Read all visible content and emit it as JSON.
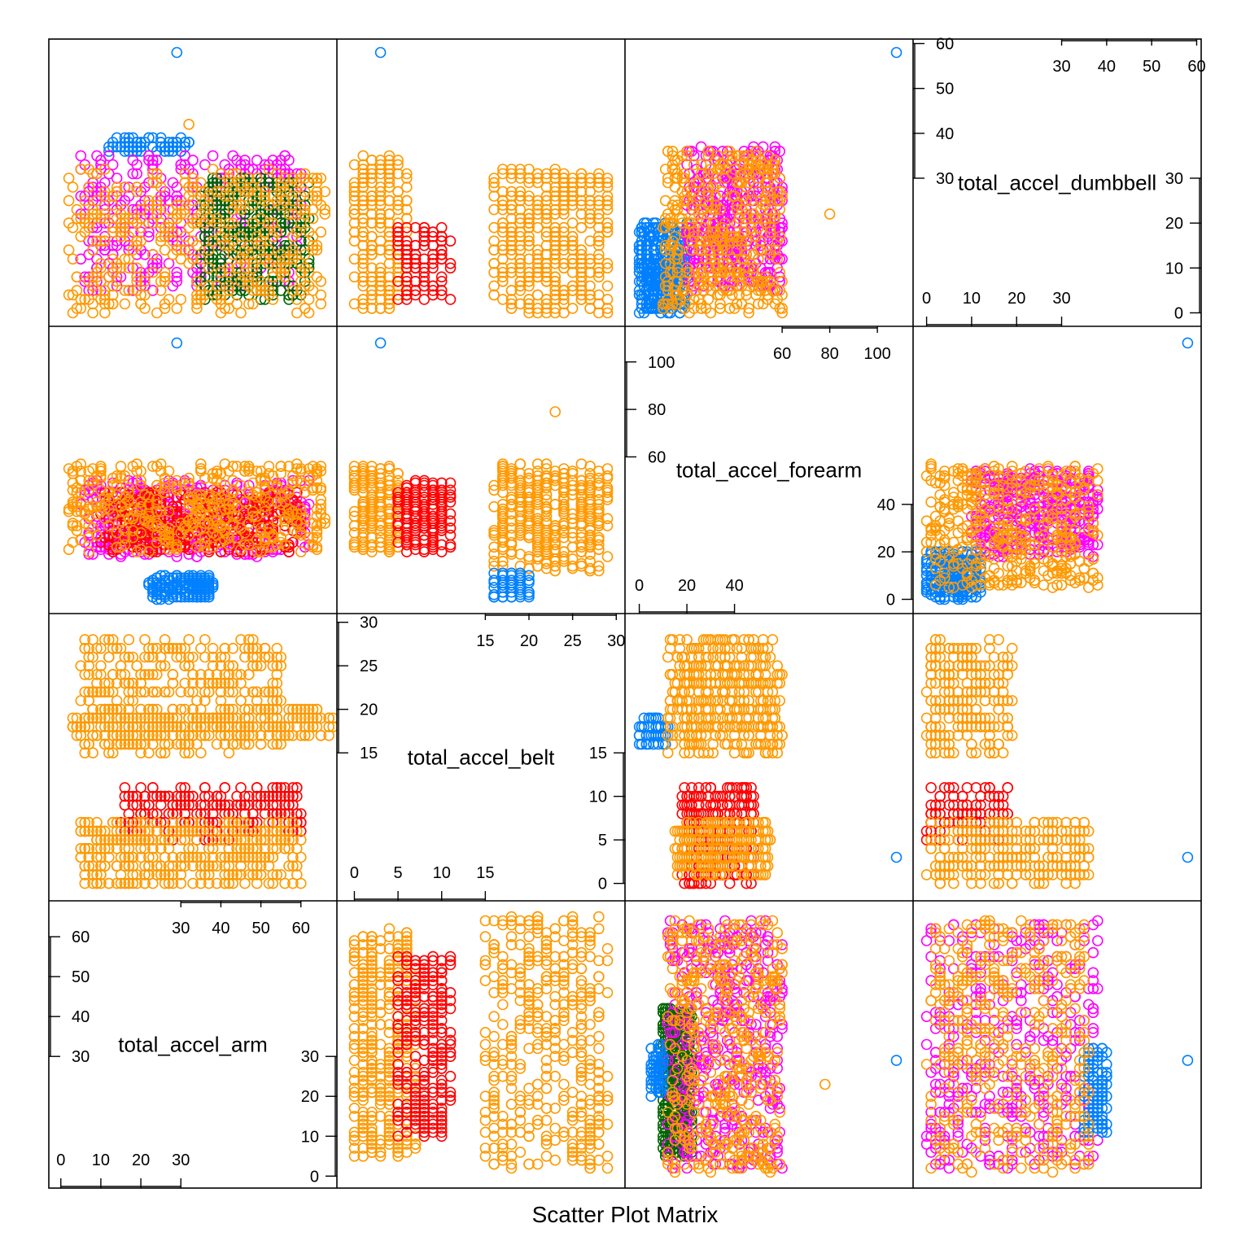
{
  "chart_data": {
    "type": "scatter",
    "subtype": "scatter-plot-matrix",
    "xlabel": "Scatter Plot Matrix",
    "variables": [
      "total_accel_arm",
      "total_accel_belt",
      "total_accel_forearm",
      "total_accel_dumbbell"
    ],
    "group_colors": [
      "#0080ff",
      "#ff00ff",
      "#006400",
      "#ff0000",
      "#ff9900"
    ],
    "marker": "open-circle",
    "ranges": {
      "total_accel_arm": [
        -3,
        69
      ],
      "total_accel_belt": [
        -2,
        31
      ],
      "total_accel_forearm": [
        -6,
        115
      ],
      "total_accel_dumbbell": [
        -3,
        61
      ]
    },
    "diagonal": [
      {
        "variable": "total_accel_arm",
        "label": "total_accel_arm",
        "ticks_top": [
          "30",
          "40",
          "50",
          "60"
        ],
        "ticks_top_values": [
          30,
          40,
          50,
          60
        ],
        "ticks_left": [
          "60",
          "50",
          "40",
          "30"
        ],
        "ticks_left_values": [
          60,
          50,
          40,
          30
        ],
        "ticks_bottom": [
          "0",
          "10",
          "20",
          "30"
        ],
        "ticks_bottom_values": [
          0,
          10,
          20,
          30
        ],
        "ticks_right": [
          "30",
          "20",
          "10",
          "0"
        ],
        "ticks_right_values": [
          30,
          20,
          10,
          0
        ]
      },
      {
        "variable": "total_accel_belt",
        "label": "total_accel_belt",
        "ticks_top": [
          "15",
          "20",
          "25",
          "30"
        ],
        "ticks_top_values": [
          15,
          20,
          25,
          30
        ],
        "ticks_left": [
          "30",
          "25",
          "20",
          "15"
        ],
        "ticks_left_values": [
          30,
          25,
          20,
          15
        ],
        "ticks_bottom": [
          "0",
          "5",
          "10",
          "15"
        ],
        "ticks_bottom_values": [
          0,
          5,
          10,
          15
        ],
        "ticks_right": [
          "15",
          "10",
          "5",
          "0"
        ],
        "ticks_right_values": [
          15,
          10,
          5,
          0
        ]
      },
      {
        "variable": "total_accel_forearm",
        "label": "total_accel_forearm",
        "ticks_top": [
          "60",
          "80",
          "100"
        ],
        "ticks_top_values": [
          60,
          80,
          100
        ],
        "ticks_left": [
          "100",
          "80",
          "60"
        ],
        "ticks_left_values": [
          100,
          80,
          60
        ],
        "ticks_bottom": [
          "0",
          "20",
          "40"
        ],
        "ticks_bottom_values": [
          0,
          20,
          40
        ],
        "ticks_right": [
          "40",
          "20",
          "0"
        ],
        "ticks_right_values": [
          40,
          20,
          0
        ]
      },
      {
        "variable": "total_accel_dumbbell",
        "label": "total_accel_dumbbell",
        "ticks_top": [
          "30",
          "40",
          "50",
          "60"
        ],
        "ticks_top_values": [
          30,
          40,
          50,
          60
        ],
        "ticks_left": [
          "60",
          "50",
          "40",
          "30"
        ],
        "ticks_left_values": [
          60,
          50,
          40,
          30
        ],
        "ticks_bottom": [
          "0",
          "10",
          "20",
          "30"
        ],
        "ticks_bottom_values": [
          0,
          10,
          20,
          30
        ],
        "ticks_right": [
          "30",
          "20",
          "10",
          "0"
        ],
        "ticks_right_values": [
          30,
          20,
          10,
          0
        ]
      }
    ],
    "clusters": [
      {
        "x": "total_accel_arm",
        "y": "total_accel_belt",
        "color": 4,
        "x_range": [
          5,
          55
        ],
        "y_range": [
          15,
          28
        ]
      },
      {
        "x": "total_accel_arm",
        "y": "total_accel_belt",
        "color": 4,
        "x_range": [
          3,
          68
        ],
        "y_range": [
          17,
          20
        ]
      },
      {
        "x": "total_accel_arm",
        "y": "total_accel_belt",
        "color": 3,
        "x_range": [
          15,
          60
        ],
        "y_range": [
          5,
          11
        ]
      },
      {
        "x": "total_accel_arm",
        "y": "total_accel_belt",
        "color": 4,
        "x_range": [
          5,
          60
        ],
        "y_range": [
          0,
          7
        ]
      },
      {
        "x": "total_accel_arm",
        "y": "total_accel_forearm",
        "color": 1,
        "x_range": [
          5,
          62
        ],
        "y_range": [
          18,
          50
        ]
      },
      {
        "x": "total_accel_arm",
        "y": "total_accel_forearm",
        "color": 3,
        "x_range": [
          10,
          60
        ],
        "y_range": [
          20,
          45
        ]
      },
      {
        "x": "total_accel_arm",
        "y": "total_accel_forearm",
        "color": 4,
        "x_range": [
          2,
          66
        ],
        "y_range": [
          20,
          57
        ]
      },
      {
        "x": "total_accel_arm",
        "y": "total_accel_forearm",
        "color": 0,
        "x_range": [
          22,
          38
        ],
        "y_range": [
          0,
          10
        ]
      },
      {
        "x": "total_accel_arm",
        "y": "total_accel_dumbbell",
        "color": 0,
        "x_range": [
          12,
          32
        ],
        "y_range": [
          36,
          39
        ]
      },
      {
        "x": "total_accel_arm",
        "y": "total_accel_dumbbell",
        "color": 1,
        "x_range": [
          5,
          60
        ],
        "y_range": [
          5,
          35
        ]
      },
      {
        "x": "total_accel_arm",
        "y": "total_accel_dumbbell",
        "color": 2,
        "x_range": [
          35,
          62
        ],
        "y_range": [
          3,
          30
        ]
      },
      {
        "x": "total_accel_arm",
        "y": "total_accel_dumbbell",
        "color": 4,
        "x_range": [
          2,
          66
        ],
        "y_range": [
          0,
          32
        ]
      },
      {
        "x": "total_accel_belt",
        "y": "total_accel_arm",
        "color": 4,
        "x_range": [
          0,
          7
        ],
        "y_range": [
          5,
          62
        ]
      },
      {
        "x": "total_accel_belt",
        "y": "total_accel_arm",
        "color": 3,
        "x_range": [
          5,
          11
        ],
        "y_range": [
          10,
          55
        ]
      },
      {
        "x": "total_accel_belt",
        "y": "total_accel_arm",
        "color": 4,
        "x_range": [
          15,
          29
        ],
        "y_range": [
          2,
          65
        ]
      },
      {
        "x": "total_accel_belt",
        "y": "total_accel_forearm",
        "color": 4,
        "x_range": [
          0,
          5
        ],
        "y_range": [
          20,
          57
        ]
      },
      {
        "x": "total_accel_belt",
        "y": "total_accel_forearm",
        "color": 3,
        "x_range": [
          5,
          11
        ],
        "y_range": [
          20,
          50
        ]
      },
      {
        "x": "total_accel_belt",
        "y": "total_accel_forearm",
        "color": 4,
        "x_range": [
          16,
          29
        ],
        "y_range": [
          12,
          57
        ]
      },
      {
        "x": "total_accel_belt",
        "y": "total_accel_forearm",
        "color": 0,
        "x_range": [
          16,
          20
        ],
        "y_range": [
          0,
          12
        ]
      },
      {
        "x": "total_accel_belt",
        "y": "total_accel_dumbbell",
        "color": 4,
        "x_range": [
          0,
          6
        ],
        "y_range": [
          0,
          35
        ]
      },
      {
        "x": "total_accel_belt",
        "y": "total_accel_dumbbell",
        "color": 3,
        "x_range": [
          5,
          11
        ],
        "y_range": [
          3,
          19
        ]
      },
      {
        "x": "total_accel_belt",
        "y": "total_accel_dumbbell",
        "color": 4,
        "x_range": [
          16,
          29
        ],
        "y_range": [
          0,
          32
        ]
      },
      {
        "x": "total_accel_forearm",
        "y": "total_accel_arm",
        "color": 2,
        "x_range": [
          10,
          22
        ],
        "y_range": [
          5,
          42
        ]
      },
      {
        "x": "total_accel_forearm",
        "y": "total_accel_arm",
        "color": 1,
        "x_range": [
          12,
          60
        ],
        "y_range": [
          2,
          64
        ]
      },
      {
        "x": "total_accel_forearm",
        "y": "total_accel_arm",
        "color": 0,
        "x_range": [
          5,
          10
        ],
        "y_range": [
          20,
          33
        ]
      },
      {
        "x": "total_accel_forearm",
        "y": "total_accel_arm",
        "color": 4,
        "x_range": [
          12,
          60
        ],
        "y_range": [
          1,
          64
        ]
      },
      {
        "x": "total_accel_forearm",
        "y": "total_accel_belt",
        "color": 0,
        "x_range": [
          0,
          12
        ],
        "y_range": [
          16,
          19
        ]
      },
      {
        "x": "total_accel_forearm",
        "y": "total_accel_belt",
        "color": 3,
        "x_range": [
          18,
          48
        ],
        "y_range": [
          0,
          11
        ]
      },
      {
        "x": "total_accel_forearm",
        "y": "total_accel_belt",
        "color": 4,
        "x_range": [
          12,
          60
        ],
        "y_range": [
          15,
          28
        ]
      },
      {
        "x": "total_accel_forearm",
        "y": "total_accel_belt",
        "color": 4,
        "x_range": [
          15,
          55
        ],
        "y_range": [
          1,
          7
        ]
      },
      {
        "x": "total_accel_forearm",
        "y": "total_accel_dumbbell",
        "color": 0,
        "x_range": [
          0,
          20
        ],
        "y_range": [
          0,
          20
        ]
      },
      {
        "x": "total_accel_forearm",
        "y": "total_accel_dumbbell",
        "color": 1,
        "x_range": [
          20,
          60
        ],
        "y_range": [
          5,
          37
        ]
      },
      {
        "x": "total_accel_forearm",
        "y": "total_accel_dumbbell",
        "color": 4,
        "x_range": [
          10,
          60
        ],
        "y_range": [
          0,
          36
        ]
      },
      {
        "x": "total_accel_dumbbell",
        "y": "total_accel_arm",
        "color": 1,
        "x_range": [
          0,
          38
        ],
        "y_range": [
          2,
          64
        ]
      },
      {
        "x": "total_accel_dumbbell",
        "y": "total_accel_arm",
        "color": 0,
        "x_range": [
          35,
          40
        ],
        "y_range": [
          10,
          32
        ]
      },
      {
        "x": "total_accel_dumbbell",
        "y": "total_accel_arm",
        "color": 4,
        "x_range": [
          0,
          36
        ],
        "y_range": [
          1,
          64
        ]
      },
      {
        "x": "total_accel_dumbbell",
        "y": "total_accel_belt",
        "color": 4,
        "x_range": [
          0,
          19
        ],
        "y_range": [
          15,
          28
        ]
      },
      {
        "x": "total_accel_dumbbell",
        "y": "total_accel_belt",
        "color": 3,
        "x_range": [
          0,
          18
        ],
        "y_range": [
          5,
          11
        ]
      },
      {
        "x": "total_accel_dumbbell",
        "y": "total_accel_belt",
        "color": 4,
        "x_range": [
          0,
          36
        ],
        "y_range": [
          0,
          7
        ]
      },
      {
        "x": "total_accel_dumbbell",
        "y": "total_accel_forearm",
        "color": 1,
        "x_range": [
          10,
          38
        ],
        "y_range": [
          18,
          55
        ]
      },
      {
        "x": "total_accel_dumbbell",
        "y": "total_accel_forearm",
        "color": 0,
        "x_range": [
          0,
          12
        ],
        "y_range": [
          0,
          20
        ]
      },
      {
        "x": "total_accel_dumbbell",
        "y": "total_accel_forearm",
        "color": 4,
        "x_range": [
          0,
          38
        ],
        "y_range": [
          5,
          57
        ]
      }
    ],
    "outliers": [
      {
        "x": "total_accel_arm",
        "y": "total_accel_dumbbell",
        "x_value": 29,
        "y_value": 58,
        "color": 0
      },
      {
        "x": "total_accel_belt",
        "y": "total_accel_dumbbell",
        "x_value": 3,
        "y_value": 58,
        "color": 0
      },
      {
        "x": "total_accel_forearm",
        "y": "total_accel_dumbbell",
        "x_value": 108,
        "y_value": 58,
        "color": 0
      },
      {
        "x": "total_accel_arm",
        "y": "total_accel_forearm",
        "x_value": 29,
        "y_value": 108,
        "color": 0
      },
      {
        "x": "total_accel_belt",
        "y": "total_accel_forearm",
        "x_value": 3,
        "y_value": 108,
        "color": 0
      },
      {
        "x": "total_accel_dumbbell",
        "y": "total_accel_forearm",
        "x_value": 58,
        "y_value": 108,
        "color": 0
      },
      {
        "x": "total_accel_forearm",
        "y": "total_accel_belt",
        "x_value": 108,
        "y_value": 3,
        "color": 0
      },
      {
        "x": "total_accel_dumbbell",
        "y": "total_accel_belt",
        "x_value": 58,
        "y_value": 3,
        "color": 0
      },
      {
        "x": "total_accel_forearm",
        "y": "total_accel_arm",
        "x_value": 108,
        "y_value": 29,
        "color": 0
      },
      {
        "x": "total_accel_dumbbell",
        "y": "total_accel_arm",
        "x_value": 58,
        "y_value": 29,
        "color": 0
      },
      {
        "x": "total_accel_forearm",
        "y": "total_accel_dumbbell",
        "x_value": 80,
        "y_value": 22,
        "color": 4
      },
      {
        "x": "total_accel_forearm",
        "y": "total_accel_arm",
        "x_value": 78,
        "y_value": 23,
        "color": 4
      },
      {
        "x": "total_accel_arm",
        "y": "total_accel_dumbbell",
        "x_value": 32,
        "y_value": 42,
        "color": 4
      },
      {
        "x": "total_accel_belt",
        "y": "total_accel_forearm",
        "x_value": 23,
        "y_value": 79,
        "color": 4
      }
    ]
  }
}
